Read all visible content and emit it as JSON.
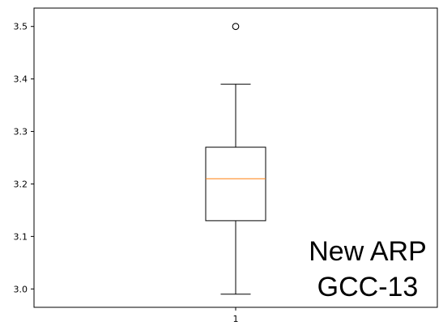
{
  "chart_data": {
    "type": "box",
    "categories": [
      "1"
    ],
    "series": [
      {
        "whisker_low": 2.99,
        "q1": 3.13,
        "median": 3.21,
        "q3": 3.27,
        "whisker_high": 3.39,
        "outliers": [
          3.5
        ]
      }
    ],
    "ylim": [
      2.965,
      3.535
    ],
    "yticks": [
      "3.0",
      "3.1",
      "3.2",
      "3.3",
      "3.4",
      "3.5"
    ],
    "grid": false,
    "annotation": [
      "New ARP",
      "GCC-13"
    ],
    "colors": {
      "box": "#000000",
      "median": "#ff7f0e",
      "outlier": "#000000"
    }
  }
}
